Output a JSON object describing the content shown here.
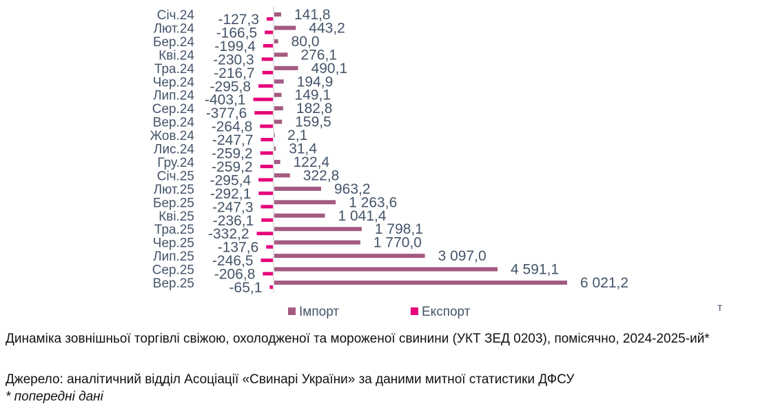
{
  "chart_data": {
    "type": "bar",
    "orientation": "horizontal",
    "categories": [
      "Січ.24",
      "Лют.24",
      "Бер.24",
      "Кві.24",
      "Тра.24",
      "Чер.24",
      "Лип.24",
      "Сер.24",
      "Вер.24",
      "Жов.24",
      "Лис.24",
      "Гру.24",
      "Січ.25",
      "Лют.25",
      "Бер.25",
      "Кві.25",
      "Тра.25",
      "Чер.25",
      "Лип.25",
      "Сер.25",
      "Вер.25"
    ],
    "series": [
      {
        "name": "Імпорт",
        "color": "#a45a80",
        "values": [
          141.8,
          443.2,
          80.0,
          276.1,
          490.1,
          194.9,
          149.1,
          182.8,
          159.5,
          2.1,
          31.4,
          122.4,
          322.8,
          963.2,
          1263.6,
          1041.4,
          1798.1,
          1770.0,
          3097.0,
          4591.1,
          6021.2
        ],
        "labels": [
          "141,8",
          "443,2",
          "80,0",
          "276,1",
          "490,1",
          "194,9",
          "149,1",
          "182,8",
          "159,5",
          "2,1",
          "31,4",
          "122,4",
          "322,8",
          "963,2",
          "1 263,6",
          "1 041,4",
          "1 798,1",
          "1 770,0",
          "3 097,0",
          "4 591,1",
          "6 021,2"
        ]
      },
      {
        "name": "Експорт",
        "color": "#e6007a",
        "values": [
          -127.3,
          -166.5,
          -199.4,
          -230.3,
          -216.7,
          -295.8,
          -403.1,
          -377.6,
          -264.8,
          -247.7,
          -259.2,
          -259.2,
          -295.4,
          -292.1,
          -247.3,
          -236.1,
          -332.2,
          -137.6,
          -246.5,
          -206.8,
          -65.1
        ],
        "labels": [
          "-127,3",
          "-166,5",
          "-199,4",
          "-230,3",
          "-216,7",
          "-295,8",
          "-403,1",
          "-377,6",
          "-264,8",
          "-247,7",
          "-259,2",
          "-259,2",
          "-295,4",
          "-292,1",
          "-247,3",
          "-236,1",
          "-332,2",
          "-137,6",
          "-246,5",
          "-206,8",
          "-65,1"
        ]
      }
    ],
    "unit": "т",
    "legend": "bottom",
    "grid": false
  },
  "caption": {
    "title": "Динаміка зовнішньої торгівлі свіжою, охолодженої та мороженої свинини (УКТ ЗЕД 0203), помісячно, 2024-2025-ий*",
    "source": "Джерело: аналітичний відділ Асоціації «Свинарі України» за даними митної статистики ДФСУ",
    "note": "* попередні дані"
  }
}
